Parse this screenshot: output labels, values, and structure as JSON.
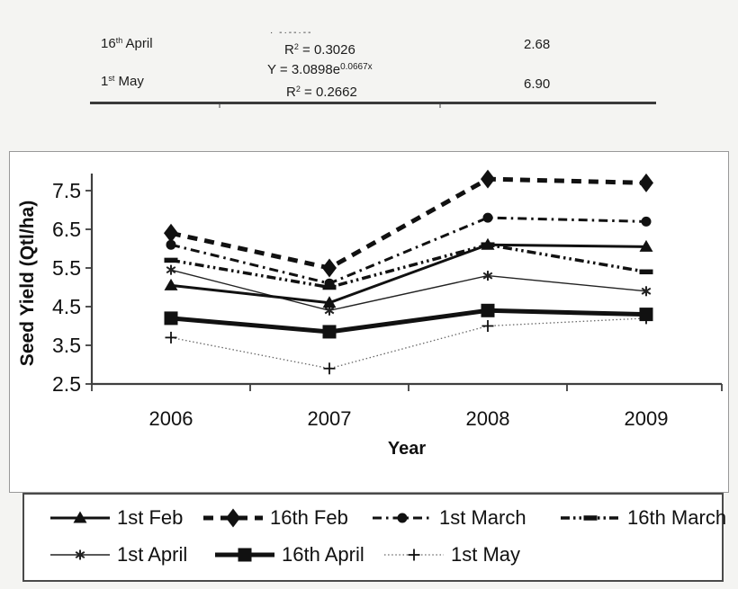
{
  "colors": {
    "page_bg": "#f4f4f2",
    "panel_bg": "#ffffff",
    "axis": "#3f3f3f",
    "text": "#111111",
    "table_rule": "#3a3a3a"
  },
  "table_fragment": {
    "row1": {
      "treatment_base": "16",
      "treatment_sup": "th",
      "treatment_rest": " April",
      "equation_clipped_fragment": "· -·--·--",
      "r2_base": "R",
      "r2_sup": "2",
      "r2_rest": " = 0.3026",
      "value": "2.68"
    },
    "row2": {
      "treatment_base": "1",
      "treatment_sup": "st",
      "treatment_rest": " May",
      "eq_base": "Y = 3.0898e",
      "eq_sup": "0.0667x",
      "r2_base": "R",
      "r2_sup": "2",
      "r2_rest": " = 0.2662",
      "value": "6.90"
    }
  },
  "chart_data": {
    "type": "line",
    "title": "",
    "xlabel": "Year",
    "ylabel": "Seed Yield (Qtl/ha)",
    "categories": [
      "2006",
      "2007",
      "2008",
      "2009"
    ],
    "ylim": [
      2.5,
      8.0
    ],
    "yticks": [
      2.5,
      3.5,
      4.5,
      5.5,
      6.5,
      7.5
    ],
    "grid": false,
    "legend_position": "bottom-box",
    "legend_rows": [
      [
        0,
        1,
        2,
        3
      ],
      [
        4,
        5,
        6
      ]
    ],
    "series": [
      {
        "name": "1st Feb",
        "marker": "triangle",
        "line": "solid",
        "width": 3,
        "color": "#111111",
        "values": [
          5.05,
          4.6,
          6.1,
          6.05
        ]
      },
      {
        "name": "16th Feb",
        "marker": "diamond",
        "line": "dashed-bold",
        "width": 5,
        "color": "#111111",
        "values": [
          6.4,
          5.5,
          7.8,
          7.7
        ]
      },
      {
        "name": "1st March",
        "marker": "circle",
        "line": "dashdot",
        "width": 3,
        "color": "#111111",
        "values": [
          6.1,
          5.1,
          6.8,
          6.7
        ]
      },
      {
        "name": "16th March",
        "marker": "dash",
        "line": "dashdotdot",
        "width": 3.5,
        "color": "#111111",
        "values": [
          5.7,
          5.0,
          6.1,
          5.4
        ]
      },
      {
        "name": "1st April",
        "marker": "asterisk",
        "line": "solid-thin",
        "width": 1.4,
        "color": "#222222",
        "values": [
          5.45,
          4.4,
          5.3,
          4.9
        ]
      },
      {
        "name": "16th April",
        "marker": "square",
        "line": "solid-bold",
        "width": 5,
        "color": "#111111",
        "values": [
          4.2,
          3.85,
          4.4,
          4.3
        ]
      },
      {
        "name": "1st May",
        "marker": "plus",
        "line": "dotted",
        "width": 1.3,
        "color": "#666666",
        "marker_color": "#111111",
        "values": [
          3.7,
          2.9,
          4.0,
          4.2
        ]
      }
    ]
  }
}
